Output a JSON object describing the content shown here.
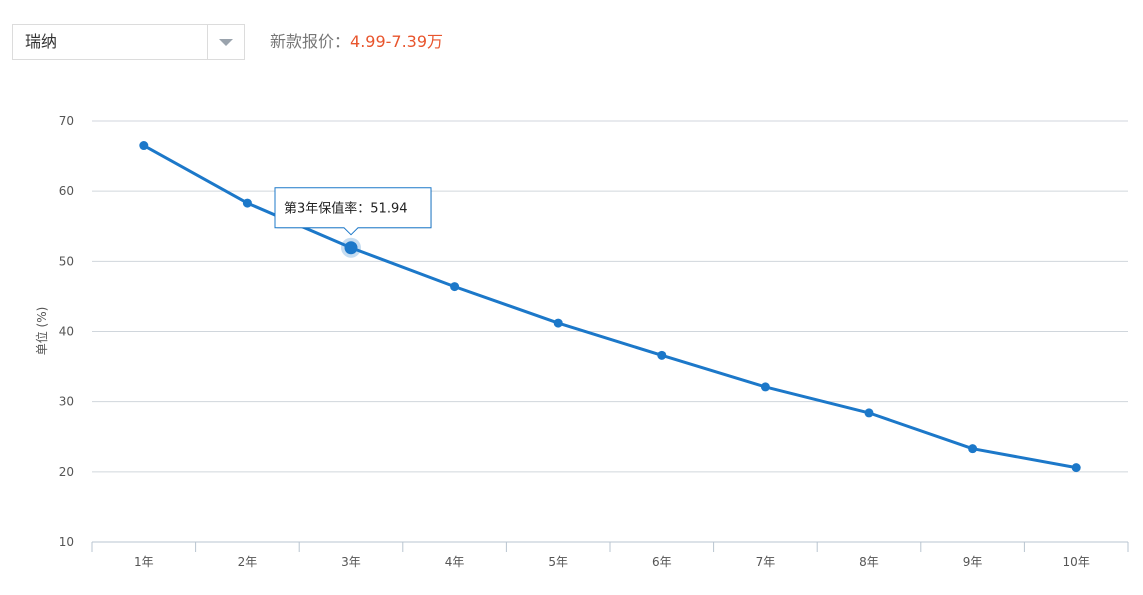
{
  "filter": {
    "model_select": {
      "value": "瑞纳"
    },
    "price_label": "新款报价：",
    "price_value": "4.99-7.39万"
  },
  "colors": {
    "line": "#1c78c9",
    "grid": "#d0d6dc",
    "price": "#e8552d",
    "tooltip_border": "#1c78c9"
  },
  "chart_data": {
    "type": "line",
    "title": "",
    "xlabel": "",
    "ylabel": "单位 (%)",
    "categories": [
      "1年",
      "2年",
      "3年",
      "4年",
      "5年",
      "6年",
      "7年",
      "8年",
      "9年",
      "10年"
    ],
    "series": [
      {
        "values": [
          66.5,
          58.3,
          51.94,
          46.4,
          41.2,
          36.6,
          32.1,
          28.4,
          23.3,
          20.6
        ]
      }
    ],
    "ylim": [
      10,
      70
    ],
    "yticks": [
      10,
      20,
      30,
      40,
      50,
      60,
      70
    ],
    "grid": true,
    "tooltip": {
      "index": 2,
      "text": "第3年保值率：51.94"
    }
  }
}
